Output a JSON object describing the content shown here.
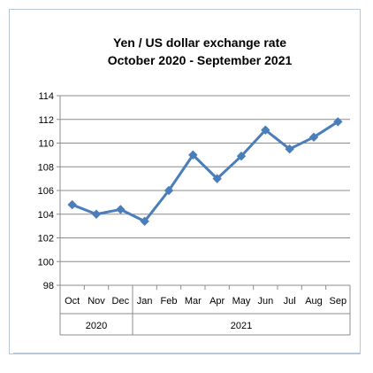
{
  "chart_data": {
    "type": "line",
    "title": "Yen / US dollar exchange rate",
    "subtitle": "October 2020 - September 2021",
    "categories": [
      "Oct",
      "Nov",
      "Dec",
      "Jan",
      "Feb",
      "Mar",
      "Apr",
      "May",
      "Jun",
      "Jul",
      "Aug",
      "Sep"
    ],
    "groups": [
      {
        "label": "2020",
        "count": 3
      },
      {
        "label": "2021",
        "count": 9
      }
    ],
    "series": [
      {
        "values": [
          104.8,
          104.0,
          104.4,
          103.4,
          106.0,
          109.0,
          107.0,
          108.9,
          111.1,
          109.5,
          110.5,
          111.8
        ]
      }
    ],
    "ylim": [
      98,
      114
    ],
    "yticks": [
      98,
      100,
      102,
      104,
      106,
      108,
      110,
      112,
      114
    ],
    "grid": true,
    "colors": {
      "line": "#4a7ebb",
      "marker": "#4a7ebb",
      "plot_bg": "#ffffff",
      "grid": "#8c8c8c"
    }
  }
}
